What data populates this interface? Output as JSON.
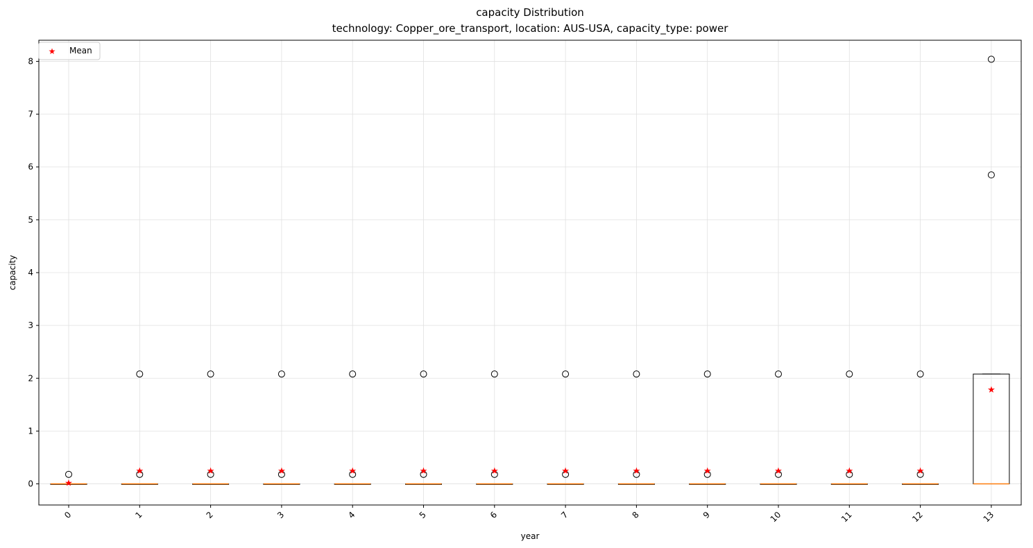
{
  "chart_data": {
    "type": "box",
    "title": "capacity Distribution",
    "subtitle": "technology: Copper_ore_transport, location: AUS-USA, capacity_type: power",
    "xlabel": "year",
    "ylabel": "capacity",
    "categories": [
      "0",
      "1",
      "2",
      "3",
      "4",
      "5",
      "6",
      "7",
      "8",
      "9",
      "10",
      "11",
      "12",
      "13"
    ],
    "ylim": [
      -0.4,
      8.4
    ],
    "yticks": [
      "0",
      "1",
      "2",
      "3",
      "4",
      "5",
      "6",
      "7",
      "8"
    ],
    "grid": true,
    "legend": {
      "position": "top-left",
      "entries": [
        "Mean"
      ]
    },
    "colors": {
      "mean": "#ff0000",
      "median": "#ff7f0e",
      "box": "#000000",
      "grid": "#e0e0e0"
    },
    "boxes": [
      {
        "x": "0",
        "q1": 0,
        "median": 0,
        "q3": 0,
        "whisker_low": 0,
        "whisker_high": 0,
        "mean": 0.02,
        "outliers": [
          0.18
        ]
      },
      {
        "x": "1",
        "q1": 0,
        "median": 0,
        "q3": 0,
        "whisker_low": 0,
        "whisker_high": 0,
        "mean": 0.25,
        "outliers": [
          0.18,
          2.08
        ]
      },
      {
        "x": "2",
        "q1": 0,
        "median": 0,
        "q3": 0,
        "whisker_low": 0,
        "whisker_high": 0,
        "mean": 0.25,
        "outliers": [
          0.18,
          2.08
        ]
      },
      {
        "x": "3",
        "q1": 0,
        "median": 0,
        "q3": 0,
        "whisker_low": 0,
        "whisker_high": 0,
        "mean": 0.25,
        "outliers": [
          0.18,
          2.08
        ]
      },
      {
        "x": "4",
        "q1": 0,
        "median": 0,
        "q3": 0,
        "whisker_low": 0,
        "whisker_high": 0,
        "mean": 0.25,
        "outliers": [
          0.18,
          2.08
        ]
      },
      {
        "x": "5",
        "q1": 0,
        "median": 0,
        "q3": 0,
        "whisker_low": 0,
        "whisker_high": 0,
        "mean": 0.25,
        "outliers": [
          0.18,
          2.08
        ]
      },
      {
        "x": "6",
        "q1": 0,
        "median": 0,
        "q3": 0,
        "whisker_low": 0,
        "whisker_high": 0,
        "mean": 0.25,
        "outliers": [
          0.18,
          2.08
        ]
      },
      {
        "x": "7",
        "q1": 0,
        "median": 0,
        "q3": 0,
        "whisker_low": 0,
        "whisker_high": 0,
        "mean": 0.25,
        "outliers": [
          0.18,
          2.08
        ]
      },
      {
        "x": "8",
        "q1": 0,
        "median": 0,
        "q3": 0,
        "whisker_low": 0,
        "whisker_high": 0,
        "mean": 0.25,
        "outliers": [
          0.18,
          2.08
        ]
      },
      {
        "x": "9",
        "q1": 0,
        "median": 0,
        "q3": 0,
        "whisker_low": 0,
        "whisker_high": 0,
        "mean": 0.25,
        "outliers": [
          0.18,
          2.08
        ]
      },
      {
        "x": "10",
        "q1": 0,
        "median": 0,
        "q3": 0,
        "whisker_low": 0,
        "whisker_high": 0,
        "mean": 0.25,
        "outliers": [
          0.18,
          2.08
        ]
      },
      {
        "x": "11",
        "q1": 0,
        "median": 0,
        "q3": 0,
        "whisker_low": 0,
        "whisker_high": 0,
        "mean": 0.25,
        "outliers": [
          0.18,
          2.08
        ]
      },
      {
        "x": "12",
        "q1": 0,
        "median": 0,
        "q3": 0,
        "whisker_low": 0,
        "whisker_high": 0,
        "mean": 0.25,
        "outliers": [
          0.18,
          2.08
        ]
      },
      {
        "x": "13",
        "q1": 0,
        "median": 0,
        "q3": 2.08,
        "whisker_low": 0,
        "whisker_high": 2.08,
        "mean": 1.79,
        "outliers": [
          5.85,
          8.04
        ]
      }
    ]
  }
}
